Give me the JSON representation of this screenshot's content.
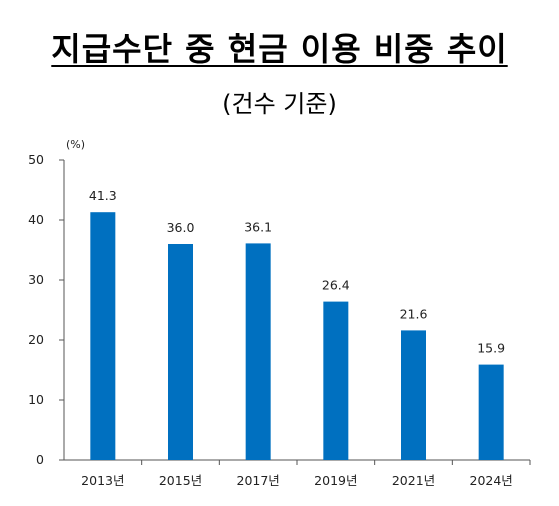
{
  "title": "지급수단 중 현금 이용 비중 추이",
  "subtitle": "(건수 기준)",
  "chart_data": {
    "type": "bar",
    "unit": "(%)",
    "categories": [
      "2013년",
      "2015년",
      "2017년",
      "2019년",
      "2021년",
      "2024년"
    ],
    "values": [
      41.3,
      36.0,
      36.1,
      26.4,
      21.6,
      15.9
    ],
    "value_labels": [
      "41.3",
      "36.0",
      "36.1",
      "26.4",
      "21.6",
      "15.9"
    ],
    "ylim": [
      0,
      50
    ],
    "yticks": [
      0,
      10,
      20,
      30,
      40,
      50
    ],
    "bar_color": "#0070C0",
    "grid": false,
    "legend": "none"
  }
}
